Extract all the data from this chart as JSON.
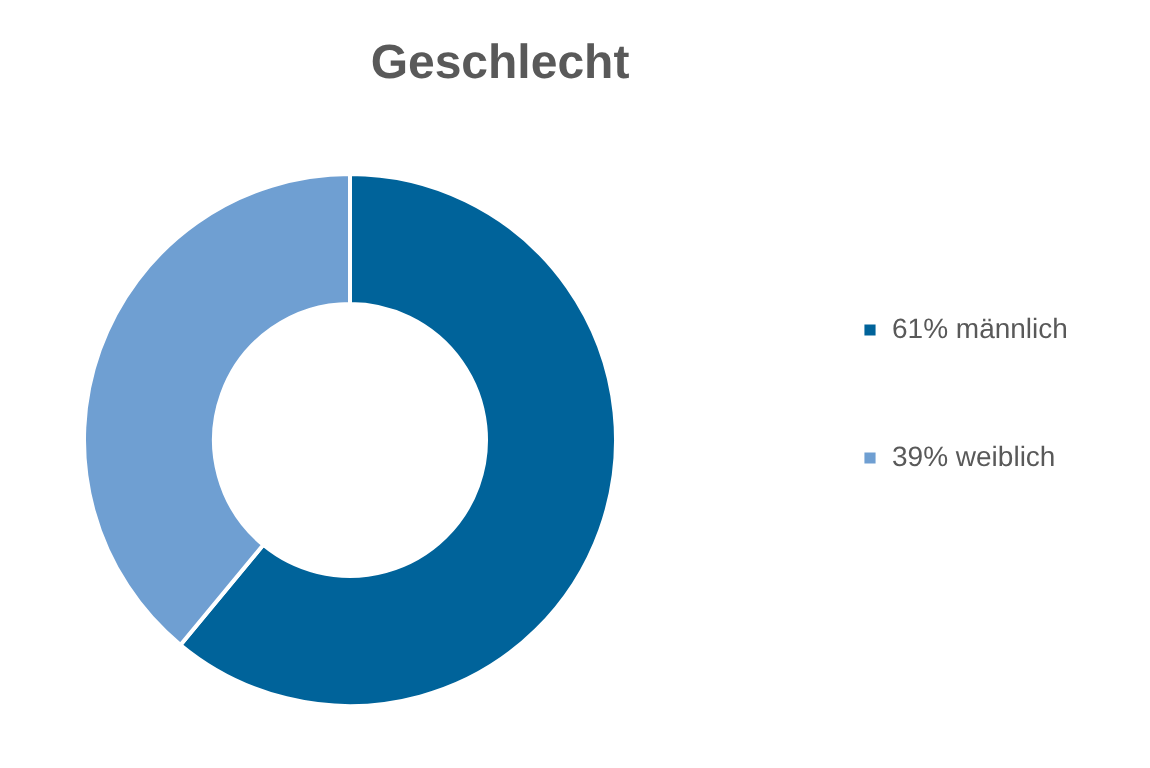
{
  "chart_data": {
    "type": "donut",
    "title": "Geschlecht",
    "categories": [
      "61% männlich",
      "39% weiblich"
    ],
    "values": [
      61,
      39
    ],
    "colors": [
      "#00639a",
      "#6f9fd2"
    ],
    "legend": "right"
  }
}
